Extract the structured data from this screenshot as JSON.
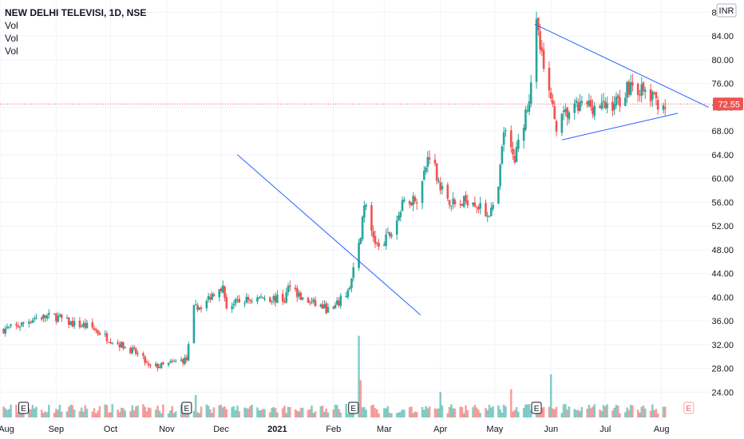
{
  "legend": {
    "title": "NEW DELHI TELEVISI, 1D, NSE",
    "lines": [
      "Vol",
      "Vol",
      "Vol"
    ]
  },
  "currency": "INR",
  "last_price_label": "72.55",
  "colors": {
    "up": "#26a69a",
    "down": "#ef5350",
    "trendline": "#2962ff",
    "price_line": "#ef5350",
    "earnings_future": "#f7525f"
  },
  "earnings_markers": [
    {
      "label": "E",
      "date": "2020-08-14",
      "future": false
    },
    {
      "label": "E",
      "date": "2020-11-12",
      "future": false
    },
    {
      "label": "E",
      "date": "2021-02-12",
      "future": false
    },
    {
      "label": "E",
      "date": "2021-05-24",
      "future": false
    },
    {
      "label": "E",
      "date": "2021-08-16",
      "future": true
    }
  ],
  "chart_data": {
    "type": "candlestick",
    "x_range": [
      "2020-08-01",
      "2021-08-28"
    ],
    "ylim": [
      20,
      89
    ],
    "y_ticks": [
      "24.00",
      "28.00",
      "32.00",
      "36.00",
      "40.00",
      "44.00",
      "48.00",
      "52.00",
      "56.00",
      "60.00",
      "64.00",
      "68.00",
      "72.00",
      "76.00",
      "80.00",
      "84.00",
      "88.00"
    ],
    "x_ticks": [
      {
        "label": "Aug",
        "date": "2020-08-01"
      },
      {
        "label": "Sep",
        "date": "2020-09-01"
      },
      {
        "label": "Oct",
        "date": "2020-10-01"
      },
      {
        "label": "Nov",
        "date": "2020-11-01"
      },
      {
        "label": "Dec",
        "date": "2020-12-01"
      },
      {
        "label": "2021",
        "date": "2021-01-01"
      },
      {
        "label": "Feb",
        "date": "2021-02-01"
      },
      {
        "label": "Mar",
        "date": "2021-03-01"
      },
      {
        "label": "Apr",
        "date": "2021-04-01"
      },
      {
        "label": "May",
        "date": "2021-05-01"
      },
      {
        "label": "Jun",
        "date": "2021-06-01"
      },
      {
        "label": "Jul",
        "date": "2021-07-01"
      },
      {
        "label": "Aug",
        "date": "2021-08-01"
      }
    ],
    "last_price": 72.55,
    "close_path": [
      [
        "2020-08-01",
        34.5
      ],
      [
        "2020-08-10",
        35.0
      ],
      [
        "2020-08-20",
        36.5
      ],
      [
        "2020-08-31",
        36.8
      ],
      [
        "2020-09-10",
        35.5
      ],
      [
        "2020-09-20",
        35.0
      ],
      [
        "2020-09-30",
        33.0
      ],
      [
        "2020-10-10",
        31.5
      ],
      [
        "2020-10-18",
        30.0
      ],
      [
        "2020-10-22",
        28.2
      ],
      [
        "2020-10-31",
        28.5
      ],
      [
        "2020-11-08",
        29.3
      ],
      [
        "2020-11-12",
        29.5
      ],
      [
        "2020-11-16",
        38.0
      ],
      [
        "2020-11-22",
        39.0
      ],
      [
        "2020-11-30",
        42.0
      ],
      [
        "2020-12-02",
        41.5
      ],
      [
        "2020-12-04",
        38.5
      ],
      [
        "2020-12-15",
        39.5
      ],
      [
        "2020-12-25",
        40.0
      ],
      [
        "2021-01-05",
        39.5
      ],
      [
        "2021-01-08",
        42.5
      ],
      [
        "2021-01-15",
        39.5
      ],
      [
        "2021-01-25",
        38.5
      ],
      [
        "2021-01-31",
        37.5
      ],
      [
        "2021-02-05",
        39.5
      ],
      [
        "2021-02-10",
        41.5
      ],
      [
        "2021-02-15",
        48.5
      ],
      [
        "2021-02-18",
        56.0
      ],
      [
        "2021-02-22",
        51.0
      ],
      [
        "2021-02-26",
        48.0
      ],
      [
        "2021-03-05",
        51.0
      ],
      [
        "2021-03-12",
        56.0
      ],
      [
        "2021-03-20",
        57.0
      ],
      [
        "2021-03-26",
        64.5
      ],
      [
        "2021-04-02",
        58.0
      ],
      [
        "2021-04-10",
        55.0
      ],
      [
        "2021-04-18",
        57.0
      ],
      [
        "2021-04-25",
        54.0
      ],
      [
        "2021-05-02",
        55.0
      ],
      [
        "2021-05-06",
        68.0
      ],
      [
        "2021-05-12",
        63.0
      ],
      [
        "2021-05-20",
        74.0
      ],
      [
        "2021-05-24",
        85.5
      ],
      [
        "2021-05-27",
        80.0
      ],
      [
        "2021-05-31",
        73.5
      ],
      [
        "2021-06-04",
        69.0
      ],
      [
        "2021-06-10",
        71.0
      ],
      [
        "2021-06-20",
        72.5
      ],
      [
        "2021-06-30",
        72.0
      ],
      [
        "2021-07-08",
        73.0
      ],
      [
        "2021-07-15",
        76.0
      ],
      [
        "2021-07-22",
        74.5
      ],
      [
        "2021-07-29",
        73.0
      ],
      [
        "2021-08-03",
        72.55
      ]
    ],
    "volume_spikes": [
      {
        "date": "2021-02-15",
        "value": 33.5
      },
      {
        "date": "2021-02-16",
        "value": 26.0
      },
      {
        "date": "2021-05-22",
        "value": 38.0
      },
      {
        "date": "2021-06-01",
        "value": 27.0
      },
      {
        "date": "2020-11-17",
        "value": 23.5
      },
      {
        "date": "2021-04-01",
        "value": 24.0
      },
      {
        "date": "2021-05-10",
        "value": 24.5
      }
    ],
    "trendlines": [
      {
        "points": [
          [
            "2020-12-10",
            64.0
          ],
          [
            "2021-03-21",
            37.0
          ]
        ]
      },
      {
        "points": [
          [
            "2021-05-23",
            86.0
          ],
          [
            "2021-08-27",
            72.0
          ]
        ]
      },
      {
        "points": [
          [
            "2021-06-07",
            66.5
          ],
          [
            "2021-08-10",
            71.0
          ]
        ]
      }
    ]
  }
}
